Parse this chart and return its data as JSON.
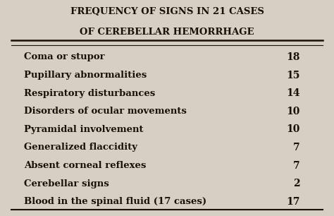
{
  "title_line1": "FREQUENCY OF SIGNS IN 21 CASES",
  "title_line2": "OF CEREBELLAR HEMORRHAGE",
  "rows": [
    [
      "Coma or stupor",
      "18"
    ],
    [
      "Pupillary abnormalities",
      "15"
    ],
    [
      "Respiratory disturbances",
      "14"
    ],
    [
      "Disorders of ocular movements",
      "10"
    ],
    [
      "Pyramidal involvement",
      "10"
    ],
    [
      "Generalized flaccidity",
      "7"
    ],
    [
      "Absent corneal reflexes",
      "7"
    ],
    [
      "Cerebellar signs",
      "2"
    ],
    [
      "Blood in the spinal fluid (17 cases)",
      "17"
    ]
  ],
  "bg_color": "#d6d0c4",
  "text_color": "#1a1008",
  "title_fontsize": 9.5,
  "row_fontsize": 9.5
}
